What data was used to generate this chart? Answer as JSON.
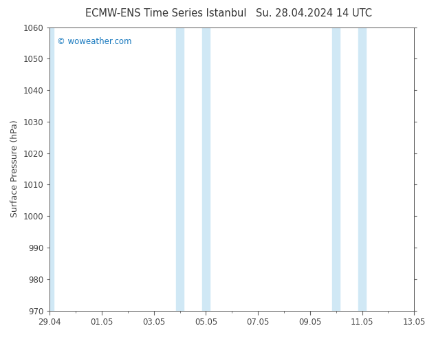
{
  "title": "ECMW-ENS Time Series Istanbul",
  "title2": "Su. 28.04.2024 14 UTC",
  "ylabel": "Surface Pressure (hPa)",
  "ylim": [
    970,
    1060
  ],
  "ytick_step": 10,
  "x_start": 0,
  "x_end": 14,
  "xtick_labels": [
    "29.04",
    "01.05",
    "03.05",
    "05.05",
    "07.05",
    "09.05",
    "11.05",
    "13.05"
  ],
  "xtick_positions": [
    0,
    2,
    4,
    6,
    8,
    10,
    12,
    14
  ],
  "shaded_bands": [
    [
      -0.05,
      0.15
    ],
    [
      4.85,
      5.15
    ],
    [
      5.85,
      6.15
    ],
    [
      10.85,
      11.15
    ],
    [
      11.85,
      12.15
    ]
  ],
  "band_color": "#d0e8f5",
  "bg_color": "#ffffff",
  "watermark": "© woweather.com",
  "watermark_color": "#1a7abf",
  "title_color": "#333333",
  "title_fontsize": 10.5,
  "axis_label_fontsize": 9,
  "tick_fontsize": 8.5,
  "watermark_fontsize": 8.5
}
